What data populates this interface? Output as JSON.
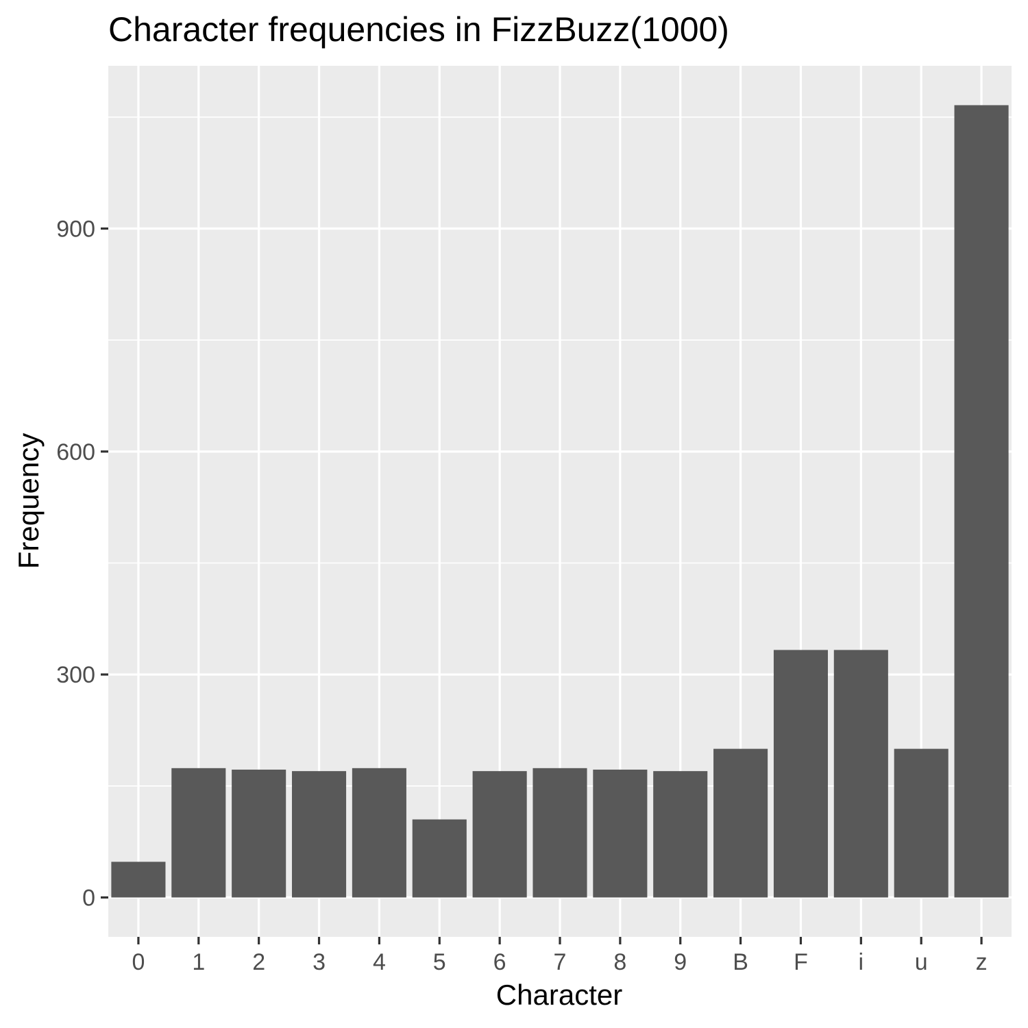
{
  "chart_data": {
    "type": "bar",
    "title": "Character frequencies in FizzBuzz(1000)",
    "xlabel": "Character",
    "ylabel": "Frequency",
    "categories": [
      "0",
      "1",
      "2",
      "3",
      "4",
      "5",
      "6",
      "7",
      "8",
      "9",
      "B",
      "F",
      "i",
      "u",
      "z"
    ],
    "values": [
      48,
      174,
      172,
      170,
      174,
      105,
      170,
      174,
      172,
      170,
      200,
      333,
      333,
      200,
      1066
    ],
    "yticks": [
      0,
      300,
      600,
      900
    ],
    "ylim": [
      -53,
      1119
    ],
    "grid": true,
    "legend": "none",
    "colors": {
      "bar": "#595959",
      "panel": "#ebebeb",
      "grid": "#ffffff",
      "tick_text": "#4d4d4d",
      "tick_mark": "#333333",
      "title_text": "#000000"
    }
  }
}
